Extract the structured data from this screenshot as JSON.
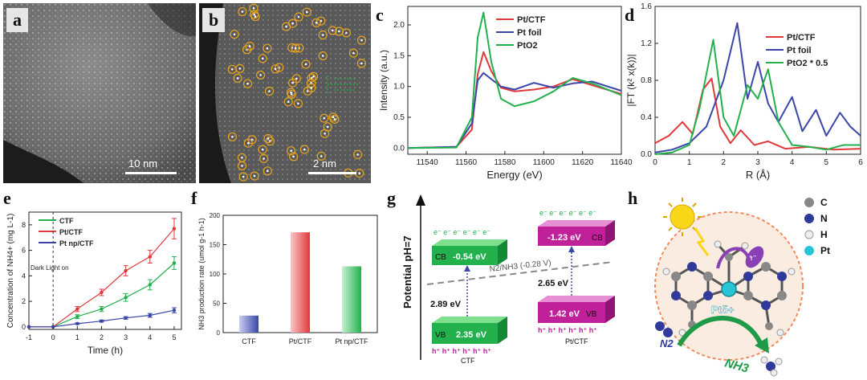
{
  "panels": {
    "a": {
      "label": "a",
      "scale_bar": "10 nm"
    },
    "b": {
      "label": "b",
      "scale_bar": "2 nm"
    },
    "c": {
      "label": "c",
      "xlabel": "Energy (eV)",
      "ylabel": "Intensity (a.u.)",
      "xticks": [
        "11540",
        "11560",
        "11580",
        "11600",
        "11620",
        "11640"
      ],
      "yticks": [
        "0.0",
        "0.5",
        "1.0",
        "1.5",
        "2.0"
      ],
      "legend": [
        "Pt/CTF",
        "Pt foil",
        "PtO2"
      ]
    },
    "d": {
      "label": "d",
      "xlabel": "R (Å)",
      "ylabel": "|FT (k² x(k))|",
      "xticks": [
        "0",
        "1",
        "2",
        "3",
        "4",
        "5",
        "6"
      ],
      "yticks": [
        "0.0",
        "0.4",
        "0.8",
        "1.2",
        "1.6"
      ],
      "legend": [
        "Pt/CTF",
        "Pt foil",
        "PtO2 * 0.5"
      ]
    },
    "e": {
      "label": "e",
      "xlabel": "Time (h)",
      "ylabel": "Concentration of NH4+ (mg L-1)",
      "xticks": [
        "-1",
        "0",
        "1",
        "2",
        "3",
        "4",
        "5"
      ],
      "yticks": [
        "0",
        "2",
        "4",
        "6",
        "8"
      ],
      "legend": [
        "CTF",
        "Pt/CTF",
        "Pt np/CTF"
      ],
      "annotation": "Dark Light on"
    },
    "f": {
      "label": "f",
      "ylabel": "NH3 production rate (umol g-1 h-1)",
      "yticks": [
        "0",
        "50",
        "100",
        "150",
        "200"
      ],
      "categories": [
        "CTF",
        "Pt/CTF",
        "Pt np/CTF"
      ]
    },
    "g": {
      "label": "g",
      "ylabel": "Potential pH=7",
      "ctf_cb": "-0.54 eV",
      "ctf_vb": "2.35 eV",
      "ctf_gap": "2.89 eV",
      "ptctf_cb": "-1.23 eV",
      "ptctf_vb": "1.42 eV",
      "ptctf_gap": "2.65 eV",
      "redox": "N2/NH3 (-0.28 V)",
      "cb": "CB",
      "vb": "VB",
      "electrons": "e⁻ e⁻ e⁻ e⁻ e⁻ e⁻",
      "holes": "h⁺ h⁺ h⁺ h⁺ h⁺ h⁺",
      "name_ctf": "CTF",
      "name_ptctf": "Pt/CTF"
    },
    "h": {
      "label": "h",
      "legend": [
        "C",
        "N",
        "H",
        "Pt"
      ],
      "pt_label": "Ptδ+",
      "e_label": "e⁻",
      "n2": "N2",
      "nh3": "NH3"
    }
  },
  "colors": {
    "red": "#e0393b",
    "blue": "#3b46a8",
    "green": "#22b14c",
    "magenta": "#c0219b"
  },
  "chart_data": [
    {
      "type": "line",
      "title": "",
      "xlabel": "Energy (eV)",
      "ylabel": "Intensity (a.u.)",
      "xlim": [
        11530,
        11640
      ],
      "ylim": [
        -0.1,
        2.3
      ],
      "series": [
        {
          "name": "Pt/CTF",
          "color": "#e0393b",
          "x": [
            11530,
            11555,
            11563,
            11566,
            11569,
            11573,
            11578,
            11585,
            11595,
            11605,
            11615,
            11625,
            11640
          ],
          "y": [
            0,
            0.02,
            0.3,
            1.2,
            1.56,
            1.25,
            0.98,
            0.92,
            0.95,
            1.0,
            1.12,
            1.02,
            0.88
          ]
        },
        {
          "name": "Pt foil",
          "color": "#3b46a8",
          "x": [
            11530,
            11555,
            11563,
            11566,
            11569,
            11573,
            11578,
            11585,
            11595,
            11605,
            11615,
            11625,
            11640
          ],
          "y": [
            0,
            0.02,
            0.4,
            1.1,
            1.22,
            1.12,
            1.0,
            0.95,
            1.06,
            0.98,
            1.05,
            1.08,
            0.93
          ]
        },
        {
          "name": "PtO2",
          "color": "#22b14c",
          "x": [
            11530,
            11555,
            11563,
            11566,
            11569,
            11573,
            11578,
            11585,
            11595,
            11605,
            11615,
            11625,
            11640
          ],
          "y": [
            0,
            0.01,
            0.5,
            1.8,
            2.2,
            1.4,
            0.8,
            0.68,
            0.76,
            0.92,
            1.14,
            1.05,
            0.86
          ]
        }
      ]
    },
    {
      "type": "line",
      "xlabel": "R (Å)",
      "ylabel": "|FT (k² x(k))|",
      "xlim": [
        0,
        6
      ],
      "ylim": [
        0,
        1.6
      ],
      "series": [
        {
          "name": "Pt/CTF",
          "color": "#e0393b",
          "x": [
            0,
            0.4,
            0.8,
            1.1,
            1.4,
            1.65,
            1.9,
            2.2,
            2.5,
            2.9,
            3.3,
            3.8,
            4.5,
            5.2,
            6
          ],
          "y": [
            0.12,
            0.2,
            0.35,
            0.22,
            0.7,
            0.82,
            0.3,
            0.12,
            0.26,
            0.1,
            0.14,
            0.06,
            0.08,
            0.05,
            0.06
          ]
        },
        {
          "name": "Pt foil",
          "color": "#3b46a8",
          "x": [
            0,
            0.5,
            1.0,
            1.5,
            2.0,
            2.4,
            2.7,
            3.0,
            3.3,
            3.6,
            4.0,
            4.3,
            4.7,
            5.0,
            5.4,
            5.7,
            6
          ],
          "y": [
            0.02,
            0.05,
            0.12,
            0.3,
            0.8,
            1.42,
            0.6,
            1.0,
            0.55,
            0.35,
            0.62,
            0.25,
            0.48,
            0.2,
            0.45,
            0.3,
            0.2
          ]
        },
        {
          "name": "PtO2 * 0.5",
          "color": "#22b14c",
          "x": [
            0,
            0.5,
            1.0,
            1.3,
            1.7,
            2.0,
            2.3,
            2.7,
            3.0,
            3.3,
            3.6,
            4.0,
            4.5,
            5.0,
            5.5,
            6
          ],
          "y": [
            0.0,
            0.02,
            0.1,
            0.5,
            1.24,
            0.4,
            0.2,
            0.75,
            0.6,
            0.92,
            0.35,
            0.1,
            0.08,
            0.05,
            0.1,
            0.1
          ]
        }
      ]
    },
    {
      "type": "line",
      "xlabel": "Time (h)",
      "ylabel": "Concentration of NH4+ (mg L-1)",
      "xlim": [
        -1,
        5.3
      ],
      "ylim": [
        -0.2,
        9
      ],
      "series": [
        {
          "name": "CTF",
          "color": "#22b14c",
          "x": [
            -1,
            0,
            1,
            2,
            3,
            4,
            5
          ],
          "y": [
            0,
            0,
            0.8,
            1.4,
            2.3,
            3.3,
            5.0
          ],
          "err": [
            0,
            0,
            0.15,
            0.2,
            0.3,
            0.4,
            0.5
          ]
        },
        {
          "name": "Pt/CTF",
          "color": "#e0393b",
          "x": [
            -1,
            0,
            1,
            2,
            3,
            4,
            5
          ],
          "y": [
            0,
            0,
            1.4,
            2.7,
            4.4,
            5.5,
            7.7
          ],
          "err": [
            0,
            0,
            0.2,
            0.25,
            0.4,
            0.5,
            0.8
          ]
        },
        {
          "name": "Pt np/CTF",
          "color": "#3b46a8",
          "x": [
            -1,
            0,
            1,
            2,
            3,
            4,
            5
          ],
          "y": [
            0,
            0,
            0.25,
            0.45,
            0.7,
            0.9,
            1.3
          ],
          "err": [
            0,
            0,
            0.05,
            0.08,
            0.1,
            0.15,
            0.2
          ]
        }
      ]
    },
    {
      "type": "bar",
      "ylabel": "NH3 production rate (umol g-1 h-1)",
      "categories": [
        "CTF",
        "Pt/CTF",
        "Pt np/CTF"
      ],
      "values": [
        29,
        171,
        113
      ],
      "ylim": [
        0,
        200
      ]
    }
  ]
}
